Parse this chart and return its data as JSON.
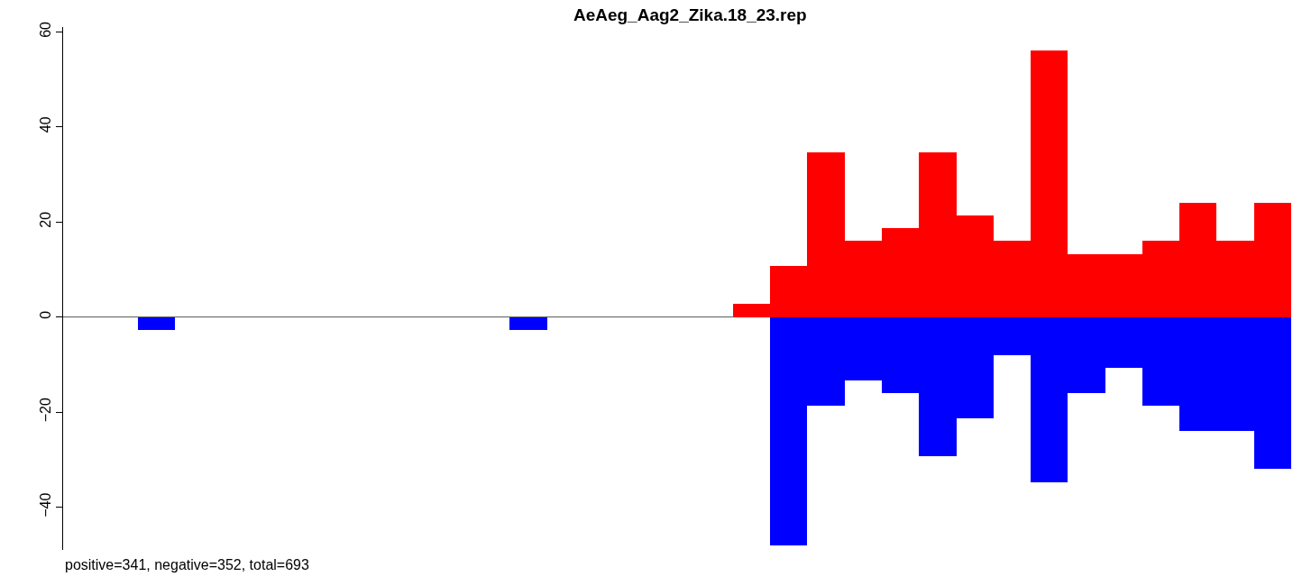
{
  "chart_data": {
    "type": "bar",
    "title": "AeAeg_Aag2_Zika.18_23.rep",
    "categories": [
      null,
      null,
      null,
      null,
      null,
      null,
      null,
      null,
      null,
      null,
      null,
      null,
      null,
      null,
      null,
      null,
      null,
      null,
      null,
      null,
      null,
      null,
      null,
      null,
      null,
      null,
      null,
      null,
      null,
      null,
      null,
      null,
      null
    ],
    "series": [
      {
        "color": "#ff0000",
        "values": [
          null,
          null,
          null,
          null,
          null,
          null,
          null,
          null,
          null,
          null,
          null,
          null,
          null,
          null,
          null,
          null,
          null,
          null,
          2.7,
          10.7,
          34.7,
          16,
          18.7,
          34.7,
          21.3,
          16,
          56,
          13.3,
          13.3,
          16,
          24,
          16,
          24
        ]
      },
      {
        "color": "#0000ff",
        "values": [
          null,
          null,
          -2.7,
          null,
          null,
          null,
          null,
          null,
          null,
          null,
          null,
          null,
          -2.7,
          null,
          null,
          null,
          null,
          null,
          null,
          -48,
          -18.7,
          -13.3,
          -16,
          -29.3,
          -21.3,
          -8,
          -34.7,
          -16,
          -10.7,
          -18.7,
          -24,
          -24,
          -32
        ]
      }
    ],
    "ylim": [
      -49,
      61
    ],
    "yticks": [
      -40,
      -20,
      0,
      20,
      40,
      60
    ],
    "ref_lines": [
      {
        "axis": "y",
        "value": 0,
        "color": "#555555"
      }
    ],
    "annotations": [
      "positive=341, negative=352, total=693"
    ],
    "grid": false
  }
}
